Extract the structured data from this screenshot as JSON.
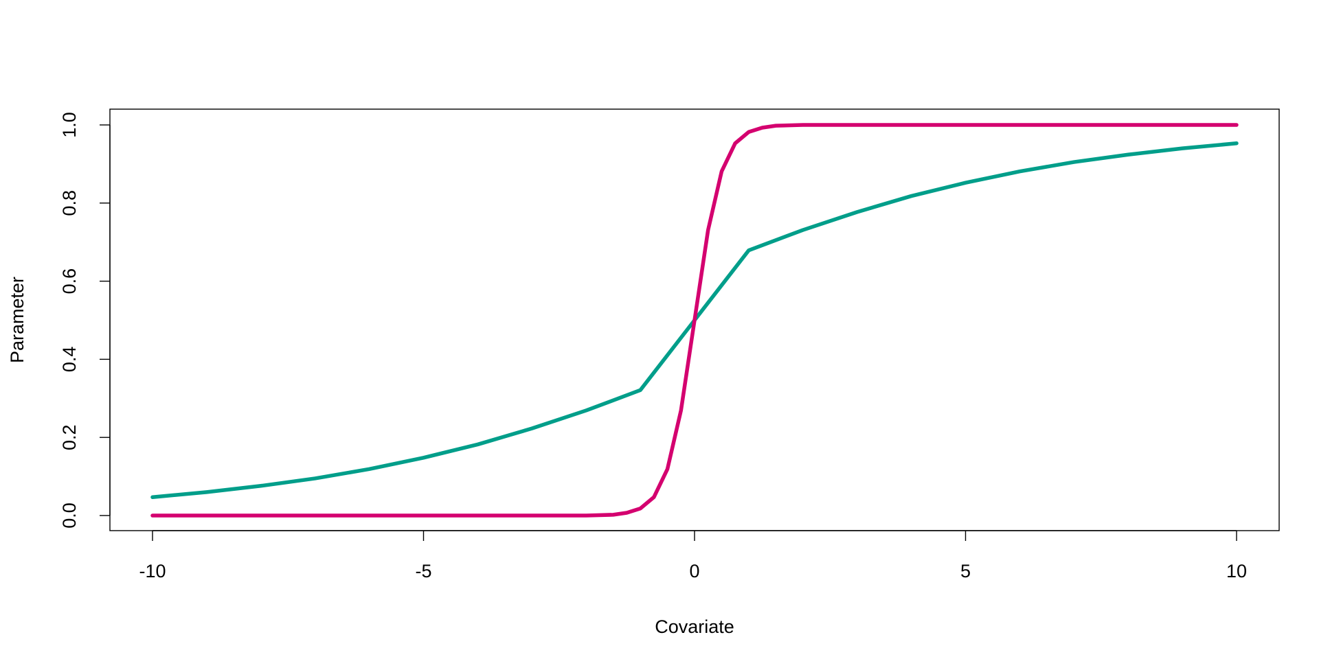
{
  "chart_data": {
    "type": "line",
    "title": "",
    "xlabel": "Covariate",
    "ylabel": "Parameter",
    "xlim": [
      -10,
      10
    ],
    "ylim": [
      0,
      1
    ],
    "x_ticks": [
      -10,
      -5,
      0,
      5,
      10
    ],
    "x_tick_labels": [
      "-10",
      "-5",
      "0",
      "5",
      "10"
    ],
    "y_ticks": [
      0,
      0.2,
      0.4,
      0.6,
      0.8,
      1
    ],
    "y_tick_labels": [
      "0.0",
      "0.2",
      "0.4",
      "0.6",
      "0.8",
      "1.0"
    ],
    "grid": false,
    "legend": "none",
    "series": [
      {
        "color": "#009E8A",
        "x": [
          -10,
          -9,
          -8,
          -7,
          -6,
          -5,
          -4,
          -3,
          -2,
          -1,
          0,
          1,
          2,
          3,
          4,
          5,
          6,
          7,
          8,
          9,
          10
        ],
        "values": [
          0.047,
          0.06,
          0.076,
          0.095,
          0.119,
          0.148,
          0.182,
          0.223,
          0.269,
          0.321,
          0.5,
          0.679,
          0.731,
          0.777,
          0.818,
          0.852,
          0.881,
          0.905,
          0.924,
          0.94,
          0.953
        ]
      },
      {
        "color": "#D4006F",
        "x": [
          -10,
          -3,
          -2,
          -1.5,
          -1.25,
          -1,
          -0.75,
          -0.5,
          -0.25,
          0,
          0.25,
          0.5,
          0.75,
          1,
          1.25,
          1.5,
          2,
          3,
          10
        ],
        "values": [
          0,
          0.0,
          0.0,
          0.002,
          0.007,
          0.018,
          0.047,
          0.119,
          0.269,
          0.5,
          0.731,
          0.881,
          0.953,
          0.982,
          0.993,
          0.998,
          1.0,
          1.0,
          1
        ]
      }
    ]
  }
}
